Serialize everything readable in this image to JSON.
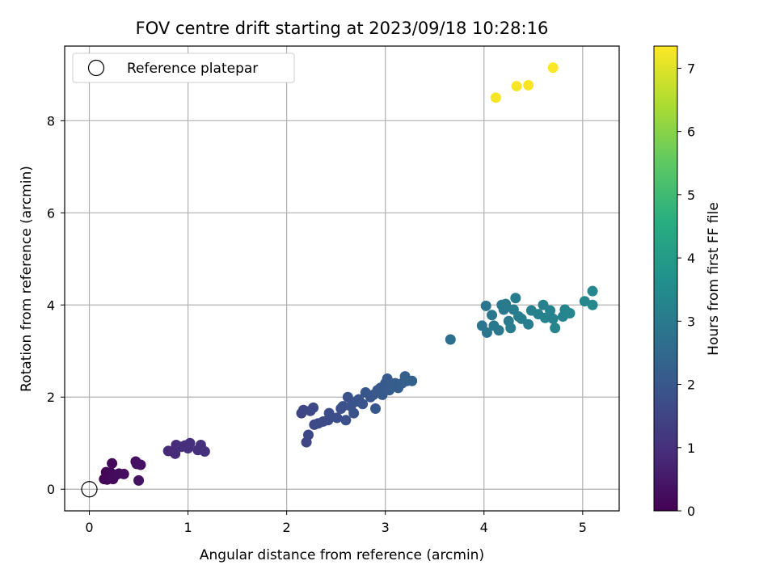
{
  "chart_data": {
    "type": "scatter",
    "title": "FOV centre drift starting at 2023/09/18 10:28:16",
    "xlabel": "Angular distance from reference (arcmin)",
    "ylabel": "Rotation from reference (arcmin)",
    "xlim": [
      -0.25,
      5.37
    ],
    "ylim": [
      -0.47,
      9.62
    ],
    "xticks": [
      0,
      1,
      2,
      3,
      4,
      5
    ],
    "yticks": [
      0,
      2,
      4,
      6,
      8
    ],
    "grid": true,
    "legend": {
      "position": "upper-left",
      "entries": [
        {
          "label": "Reference platepar",
          "marker": "hollow-circle"
        }
      ]
    },
    "reference_point": {
      "x": 0,
      "y": 0
    },
    "colorbar": {
      "label": "Hours from first FF file",
      "colormap": "viridis",
      "range": [
        0,
        7.35
      ],
      "ticks": [
        0,
        1,
        2,
        3,
        4,
        5,
        6,
        7
      ]
    },
    "points": [
      {
        "x": 0.15,
        "y": 0.22,
        "c": 0.05
      },
      {
        "x": 0.17,
        "y": 0.37,
        "c": 0.08
      },
      {
        "x": 0.18,
        "y": 0.21,
        "c": 0.1
      },
      {
        "x": 0.2,
        "y": 0.25,
        "c": 0.12
      },
      {
        "x": 0.22,
        "y": 0.35,
        "c": 0.14
      },
      {
        "x": 0.23,
        "y": 0.56,
        "c": 0.16
      },
      {
        "x": 0.24,
        "y": 0.22,
        "c": 0.18
      },
      {
        "x": 0.27,
        "y": 0.31,
        "c": 0.2
      },
      {
        "x": 0.3,
        "y": 0.34,
        "c": 0.22
      },
      {
        "x": 0.35,
        "y": 0.33,
        "c": 0.25
      },
      {
        "x": 0.47,
        "y": 0.6,
        "c": 0.3
      },
      {
        "x": 0.48,
        "y": 0.55,
        "c": 0.32
      },
      {
        "x": 0.5,
        "y": 0.19,
        "c": 0.33
      },
      {
        "x": 0.52,
        "y": 0.53,
        "c": 0.35
      },
      {
        "x": 0.8,
        "y": 0.83,
        "c": 0.85
      },
      {
        "x": 0.85,
        "y": 0.82,
        "c": 0.87
      },
      {
        "x": 0.87,
        "y": 0.77,
        "c": 0.88
      },
      {
        "x": 0.88,
        "y": 0.96,
        "c": 0.9
      },
      {
        "x": 0.93,
        "y": 0.92,
        "c": 0.92
      },
      {
        "x": 0.97,
        "y": 0.95,
        "c": 0.94
      },
      {
        "x": 1.0,
        "y": 0.89,
        "c": 0.96
      },
      {
        "x": 1.02,
        "y": 1.0,
        "c": 0.98
      },
      {
        "x": 1.1,
        "y": 0.85,
        "c": 1.0
      },
      {
        "x": 1.13,
        "y": 0.96,
        "c": 1.02
      },
      {
        "x": 1.17,
        "y": 0.82,
        "c": 1.04
      },
      {
        "x": 2.15,
        "y": 1.65,
        "c": 1.5
      },
      {
        "x": 2.17,
        "y": 1.72,
        "c": 1.52
      },
      {
        "x": 2.2,
        "y": 1.02,
        "c": 1.55
      },
      {
        "x": 2.22,
        "y": 1.18,
        "c": 1.57
      },
      {
        "x": 2.24,
        "y": 1.7,
        "c": 1.6
      },
      {
        "x": 2.27,
        "y": 1.77,
        "c": 1.62
      },
      {
        "x": 2.28,
        "y": 1.4,
        "c": 1.64
      },
      {
        "x": 2.32,
        "y": 1.43,
        "c": 1.66
      },
      {
        "x": 2.37,
        "y": 1.47,
        "c": 1.68
      },
      {
        "x": 2.42,
        "y": 1.5,
        "c": 1.7
      },
      {
        "x": 2.43,
        "y": 1.65,
        "c": 1.72
      },
      {
        "x": 2.51,
        "y": 1.55,
        "c": 1.74
      },
      {
        "x": 2.55,
        "y": 1.75,
        "c": 1.76
      },
      {
        "x": 2.57,
        "y": 1.8,
        "c": 1.78
      },
      {
        "x": 2.6,
        "y": 1.5,
        "c": 1.8
      },
      {
        "x": 2.62,
        "y": 2.0,
        "c": 1.82
      },
      {
        "x": 2.65,
        "y": 1.8,
        "c": 1.84
      },
      {
        "x": 2.68,
        "y": 1.65,
        "c": 1.86
      },
      {
        "x": 2.7,
        "y": 1.9,
        "c": 1.88
      },
      {
        "x": 2.73,
        "y": 1.95,
        "c": 1.9
      },
      {
        "x": 2.77,
        "y": 1.85,
        "c": 1.92
      },
      {
        "x": 2.8,
        "y": 2.1,
        "c": 1.94
      },
      {
        "x": 2.85,
        "y": 2.0,
        "c": 1.96
      },
      {
        "x": 2.88,
        "y": 2.05,
        "c": 1.98
      },
      {
        "x": 2.9,
        "y": 1.75,
        "c": 2.0
      },
      {
        "x": 2.92,
        "y": 2.15,
        "c": 2.02
      },
      {
        "x": 2.95,
        "y": 2.2,
        "c": 2.04
      },
      {
        "x": 2.97,
        "y": 2.05,
        "c": 2.06
      },
      {
        "x": 3.0,
        "y": 2.3,
        "c": 2.08
      },
      {
        "x": 3.02,
        "y": 2.4,
        "c": 2.1
      },
      {
        "x": 3.04,
        "y": 2.15,
        "c": 2.12
      },
      {
        "x": 3.07,
        "y": 2.25,
        "c": 2.14
      },
      {
        "x": 3.1,
        "y": 2.3,
        "c": 2.16
      },
      {
        "x": 3.13,
        "y": 2.2,
        "c": 2.18
      },
      {
        "x": 3.17,
        "y": 2.3,
        "c": 2.2
      },
      {
        "x": 3.2,
        "y": 2.45,
        "c": 2.22
      },
      {
        "x": 3.22,
        "y": 2.35,
        "c": 2.24
      },
      {
        "x": 3.27,
        "y": 2.35,
        "c": 2.26
      },
      {
        "x": 3.66,
        "y": 3.25,
        "c": 2.7
      },
      {
        "x": 3.98,
        "y": 3.55,
        "c": 2.85
      },
      {
        "x": 4.02,
        "y": 3.98,
        "c": 2.87
      },
      {
        "x": 4.03,
        "y": 3.4,
        "c": 2.88
      },
      {
        "x": 4.08,
        "y": 3.78,
        "c": 2.9
      },
      {
        "x": 4.1,
        "y": 3.55,
        "c": 2.92
      },
      {
        "x": 4.15,
        "y": 3.45,
        "c": 2.94
      },
      {
        "x": 4.18,
        "y": 4.0,
        "c": 2.96
      },
      {
        "x": 4.2,
        "y": 3.9,
        "c": 2.98
      },
      {
        "x": 4.22,
        "y": 4.02,
        "c": 3.0
      },
      {
        "x": 4.25,
        "y": 3.65,
        "c": 3.02
      },
      {
        "x": 4.27,
        "y": 3.5,
        "c": 3.04
      },
      {
        "x": 4.3,
        "y": 3.9,
        "c": 3.06
      },
      {
        "x": 4.32,
        "y": 4.15,
        "c": 3.08
      },
      {
        "x": 4.35,
        "y": 3.75,
        "c": 3.1
      },
      {
        "x": 4.38,
        "y": 3.7,
        "c": 3.12
      },
      {
        "x": 4.45,
        "y": 3.58,
        "c": 3.14
      },
      {
        "x": 4.48,
        "y": 3.88,
        "c": 3.16
      },
      {
        "x": 4.55,
        "y": 3.8,
        "c": 3.18
      },
      {
        "x": 4.6,
        "y": 4.0,
        "c": 3.2
      },
      {
        "x": 4.62,
        "y": 3.72,
        "c": 3.22
      },
      {
        "x": 4.67,
        "y": 3.88,
        "c": 3.24
      },
      {
        "x": 4.7,
        "y": 3.7,
        "c": 3.26
      },
      {
        "x": 4.72,
        "y": 3.5,
        "c": 3.28
      },
      {
        "x": 4.8,
        "y": 3.75,
        "c": 3.3
      },
      {
        "x": 4.82,
        "y": 3.9,
        "c": 3.32
      },
      {
        "x": 4.87,
        "y": 3.82,
        "c": 3.34
      },
      {
        "x": 5.02,
        "y": 4.08,
        "c": 3.36
      },
      {
        "x": 5.1,
        "y": 4.3,
        "c": 3.38
      },
      {
        "x": 5.1,
        "y": 4.0,
        "c": 3.4
      },
      {
        "x": 4.12,
        "y": 8.5,
        "c": 7.25
      },
      {
        "x": 4.33,
        "y": 8.75,
        "c": 7.27
      },
      {
        "x": 4.45,
        "y": 8.77,
        "c": 7.29
      },
      {
        "x": 4.7,
        "y": 9.15,
        "c": 7.31
      }
    ]
  }
}
